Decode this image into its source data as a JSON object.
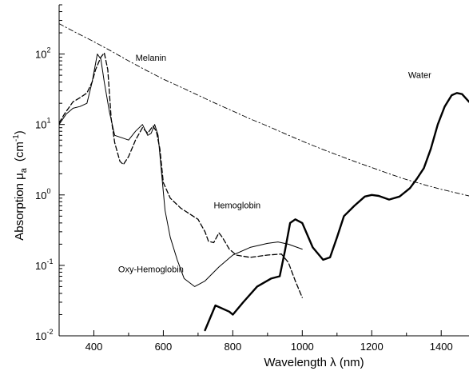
{
  "chart_data": {
    "type": "line",
    "title": "",
    "xlabel": "Wavelength λ  (nm)",
    "ylabel": {
      "prefix": "Absorption μ",
      "subscript": "a",
      "unit": "(cm",
      "unit_exp": "-1",
      "unit_close": ")"
    },
    "xlim": [
      300,
      1480
    ],
    "ylim": [
      0.01,
      500
    ],
    "yscale": "log",
    "grid": false,
    "x_ticks": [
      400,
      600,
      800,
      1000,
      1200,
      1400
    ],
    "y_ticks": [
      {
        "value": 0.01,
        "base": "10",
        "exp": "-2"
      },
      {
        "value": 0.1,
        "base": "10",
        "exp": "-1"
      },
      {
        "value": 1,
        "base": "10",
        "exp": "0"
      },
      {
        "value": 10,
        "base": "10",
        "exp": "1"
      },
      {
        "value": 100,
        "base": "10",
        "exp": "2"
      }
    ],
    "annotations": [
      {
        "text": "Melanin",
        "x": 520,
        "y": 80
      },
      {
        "text": "Water",
        "x": 1305,
        "y": 46
      },
      {
        "text": "Hemoglobin",
        "x": 745,
        "y": 0.65
      },
      {
        "text": "Oxy-Hemoglobin",
        "x": 470,
        "y": 0.08
      }
    ],
    "series": [
      {
        "name": "Melanin",
        "style": "dashdot",
        "width": 0.9,
        "points": [
          [
            300,
            270
          ],
          [
            350,
            200
          ],
          [
            400,
            150
          ],
          [
            450,
            110
          ],
          [
            500,
            80
          ],
          [
            550,
            59
          ],
          [
            600,
            44
          ],
          [
            650,
            34
          ],
          [
            700,
            26
          ],
          [
            750,
            20
          ],
          [
            800,
            15.5
          ],
          [
            850,
            12
          ],
          [
            900,
            9.5
          ],
          [
            950,
            7.4
          ],
          [
            1000,
            5.8
          ],
          [
            1050,
            4.6
          ],
          [
            1100,
            3.7
          ],
          [
            1150,
            3
          ],
          [
            1200,
            2.45
          ],
          [
            1250,
            2
          ],
          [
            1300,
            1.65
          ],
          [
            1350,
            1.4
          ],
          [
            1400,
            1.2
          ],
          [
            1450,
            1.05
          ],
          [
            1480,
            0.97
          ]
        ]
      },
      {
        "name": "Water",
        "style": "solid",
        "width": 2.4,
        "points": [
          [
            720,
            0.012
          ],
          [
            750,
            0.027
          ],
          [
            790,
            0.022
          ],
          [
            800,
            0.02
          ],
          [
            830,
            0.03
          ],
          [
            870,
            0.05
          ],
          [
            910,
            0.065
          ],
          [
            935,
            0.07
          ],
          [
            950,
            0.16
          ],
          [
            965,
            0.4
          ],
          [
            980,
            0.45
          ],
          [
            1000,
            0.4
          ],
          [
            1030,
            0.18
          ],
          [
            1060,
            0.12
          ],
          [
            1080,
            0.13
          ],
          [
            1100,
            0.25
          ],
          [
            1120,
            0.5
          ],
          [
            1150,
            0.7
          ],
          [
            1180,
            0.95
          ],
          [
            1200,
            1
          ],
          [
            1220,
            0.97
          ],
          [
            1250,
            0.86
          ],
          [
            1280,
            0.95
          ],
          [
            1310,
            1.25
          ],
          [
            1330,
            1.7
          ],
          [
            1350,
            2.4
          ],
          [
            1370,
            4.5
          ],
          [
            1390,
            10
          ],
          [
            1410,
            18
          ],
          [
            1430,
            26
          ],
          [
            1445,
            28
          ],
          [
            1460,
            27
          ],
          [
            1480,
            21
          ]
        ]
      },
      {
        "name": "Hemoglobin",
        "style": "dashed",
        "width": 1.3,
        "points": [
          [
            300,
            10.5
          ],
          [
            315,
            14
          ],
          [
            340,
            21
          ],
          [
            360,
            24
          ],
          [
            380,
            28
          ],
          [
            395,
            40
          ],
          [
            405,
            60
          ],
          [
            420,
            90
          ],
          [
            430,
            104
          ],
          [
            440,
            60
          ],
          [
            450,
            12
          ],
          [
            460,
            5.5
          ],
          [
            475,
            3
          ],
          [
            485,
            2.7
          ],
          [
            500,
            3.5
          ],
          [
            520,
            6
          ],
          [
            540,
            9
          ],
          [
            555,
            7.5
          ],
          [
            570,
            9.5
          ],
          [
            580,
            8
          ],
          [
            590,
            4.5
          ],
          [
            600,
            1.5
          ],
          [
            620,
            0.9
          ],
          [
            650,
            0.65
          ],
          [
            700,
            0.45
          ],
          [
            720,
            0.3
          ],
          [
            730,
            0.22
          ],
          [
            745,
            0.21
          ],
          [
            760,
            0.29
          ],
          [
            770,
            0.25
          ],
          [
            790,
            0.17
          ],
          [
            810,
            0.14
          ],
          [
            850,
            0.13
          ],
          [
            900,
            0.14
          ],
          [
            940,
            0.145
          ],
          [
            960,
            0.11
          ],
          [
            980,
            0.06
          ],
          [
            1000,
            0.035
          ]
        ]
      },
      {
        "name": "Oxy-Hemoglobin",
        "style": "solid",
        "width": 1.0,
        "points": [
          [
            300,
            10
          ],
          [
            320,
            14
          ],
          [
            340,
            17
          ],
          [
            360,
            18
          ],
          [
            380,
            20
          ],
          [
            395,
            40
          ],
          [
            410,
            100
          ],
          [
            420,
            85
          ],
          [
            430,
            40
          ],
          [
            445,
            15
          ],
          [
            460,
            7
          ],
          [
            480,
            6.5
          ],
          [
            500,
            6
          ],
          [
            520,
            8
          ],
          [
            540,
            10
          ],
          [
            555,
            7
          ],
          [
            565,
            7.5
          ],
          [
            575,
            10
          ],
          [
            585,
            7
          ],
          [
            595,
            2
          ],
          [
            605,
            0.6
          ],
          [
            620,
            0.25
          ],
          [
            640,
            0.12
          ],
          [
            660,
            0.065
          ],
          [
            690,
            0.05
          ],
          [
            720,
            0.06
          ],
          [
            760,
            0.095
          ],
          [
            800,
            0.14
          ],
          [
            850,
            0.18
          ],
          [
            900,
            0.205
          ],
          [
            930,
            0.215
          ],
          [
            960,
            0.2
          ],
          [
            1000,
            0.17
          ]
        ]
      }
    ]
  }
}
